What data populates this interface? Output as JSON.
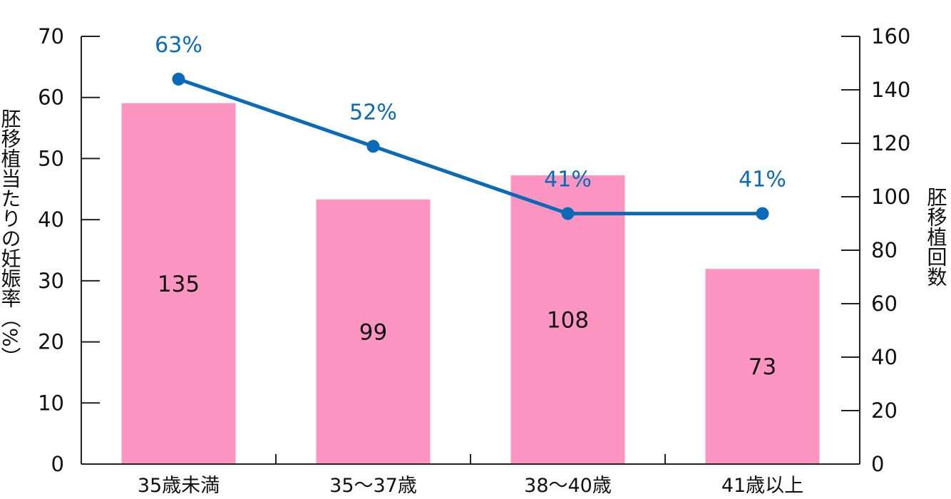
{
  "chart_data": {
    "type": "bar",
    "categories": [
      "35歳未満",
      "35～37歳",
      "38～40歳",
      "41歳以上"
    ],
    "series": [
      {
        "axis": "right",
        "type": "bar",
        "values": [
          135,
          99,
          108,
          73
        ],
        "color": "#fc95c1"
      },
      {
        "axis": "left",
        "type": "line",
        "values": [
          63,
          52,
          41,
          41
        ],
        "labels": [
          "63%",
          "52%",
          "41%",
          "41%"
        ],
        "color": "#0a6ab7"
      }
    ],
    "ylabel": "胚移植当たりの妊娠率（%）",
    "y2label": "胚移植回数",
    "ylim": [
      0,
      70
    ],
    "y2lim": [
      0,
      160
    ],
    "yticks": [
      0,
      10,
      20,
      30,
      40,
      50,
      60,
      70
    ],
    "y2ticks": [
      0,
      20,
      40,
      60,
      80,
      100,
      120,
      140,
      160
    ],
    "grid": false
  }
}
